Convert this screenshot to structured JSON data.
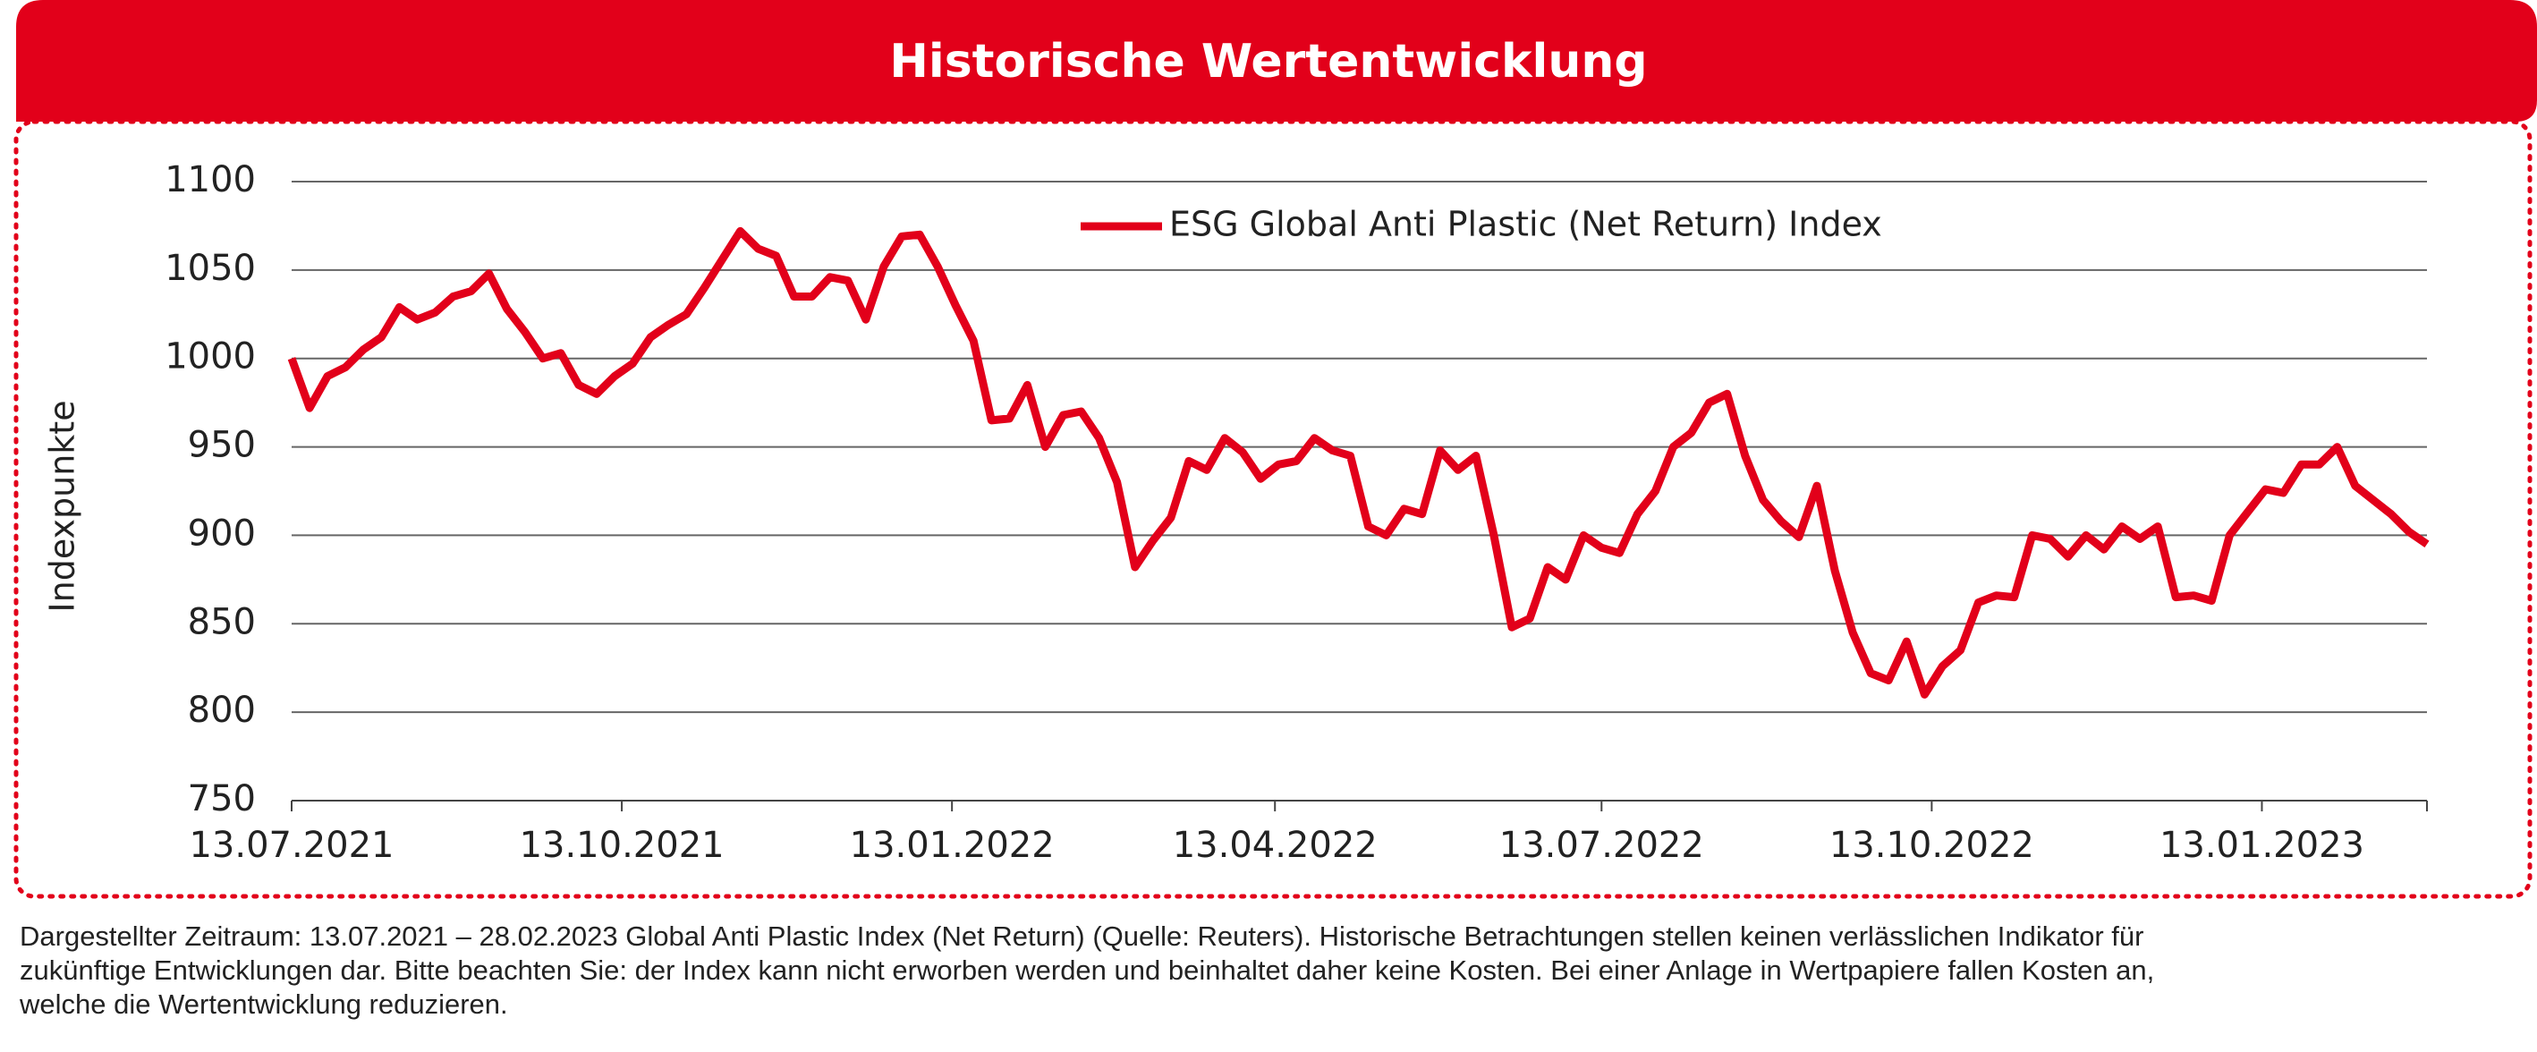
{
  "chart_data": {
    "type": "line",
    "title": "Historische Wertentwicklung",
    "ylabel": "Indexpunkte",
    "x": [
      "13.07.2021",
      "18.07.2021",
      "23.07.2021",
      "28.07.2021",
      "02.08.2021",
      "07.08.2021",
      "12.08.2021",
      "17.08.2021",
      "22.08.2021",
      "27.08.2021",
      "01.09.2021",
      "06.09.2021",
      "11.09.2021",
      "16.09.2021",
      "21.09.2021",
      "26.09.2021",
      "01.10.2021",
      "06.10.2021",
      "11.10.2021",
      "16.10.2021",
      "21.10.2021",
      "26.10.2021",
      "31.10.2021",
      "05.11.2021",
      "10.11.2021",
      "15.11.2021",
      "20.11.2021",
      "25.11.2021",
      "30.11.2021",
      "05.12.2021",
      "10.12.2021",
      "15.12.2021",
      "20.12.2021",
      "25.12.2021",
      "30.12.2021",
      "04.01.2022",
      "09.01.2022",
      "14.01.2022",
      "19.01.2022",
      "24.01.2022",
      "29.01.2022",
      "03.02.2022",
      "08.02.2022",
      "13.02.2022",
      "18.02.2022",
      "23.02.2022",
      "28.02.2022",
      "05.03.2022",
      "10.03.2022",
      "15.03.2022",
      "20.03.2022",
      "25.03.2022",
      "30.03.2022",
      "04.04.2022",
      "09.04.2022",
      "14.04.2022",
      "19.04.2022",
      "24.04.2022",
      "29.04.2022",
      "04.05.2022",
      "09.05.2022",
      "14.05.2022",
      "19.05.2022",
      "24.05.2022",
      "29.05.2022",
      "03.06.2022",
      "08.06.2022",
      "13.06.2022",
      "18.06.2022",
      "23.06.2022",
      "28.06.2022",
      "03.07.2022",
      "08.07.2022",
      "13.07.2022",
      "18.07.2022",
      "23.07.2022",
      "28.07.2022",
      "02.08.2022",
      "07.08.2022",
      "12.08.2022",
      "17.08.2022",
      "22.08.2022",
      "27.08.2022",
      "01.09.2022",
      "06.09.2022",
      "11.09.2022",
      "16.09.2022",
      "21.09.2022",
      "26.09.2022",
      "01.10.2022",
      "06.10.2022",
      "11.10.2022",
      "16.10.2022",
      "21.10.2022",
      "26.10.2022",
      "31.10.2022",
      "05.11.2022",
      "10.11.2022",
      "15.11.2022",
      "20.11.2022",
      "25.11.2022",
      "30.11.2022",
      "05.12.2022",
      "10.12.2022",
      "15.12.2022",
      "20.12.2022",
      "25.12.2022",
      "30.12.2022",
      "04.01.2023",
      "09.01.2023",
      "14.01.2023",
      "19.01.2023",
      "24.01.2023",
      "29.01.2023",
      "03.02.2023",
      "08.02.2023",
      "13.02.2023",
      "18.02.2023",
      "23.02.2023",
      "28.02.2023"
    ],
    "series": [
      {
        "name": "ESG Global Anti Plastic (Net Return) Index",
        "color": "#e2001a",
        "values": [
          1000,
          972,
          990,
          995,
          1005,
          1012,
          1029,
          1022,
          1026,
          1035,
          1038,
          1048,
          1028,
          1015,
          1000,
          1003,
          985,
          980,
          990,
          997,
          1012,
          1019,
          1025,
          1040,
          1056,
          1072,
          1062,
          1058,
          1035,
          1035,
          1046,
          1044,
          1022,
          1052,
          1069,
          1070,
          1052,
          1030,
          1010,
          965,
          966,
          985,
          950,
          968,
          970,
          955,
          930,
          882,
          897,
          910,
          942,
          937,
          955,
          947,
          932,
          940,
          942,
          955,
          948,
          945,
          905,
          900,
          915,
          912,
          948,
          937,
          945,
          900,
          848,
          853,
          882,
          875,
          900,
          893,
          890,
          912,
          925,
          950,
          958,
          975,
          980,
          945,
          920,
          908,
          899,
          928,
          880,
          845,
          822,
          818,
          840,
          810,
          826,
          835,
          862,
          866,
          865,
          900,
          898,
          888,
          900,
          892,
          905,
          898,
          905,
          865,
          866,
          863,
          900,
          913,
          926,
          924,
          940,
          940,
          950,
          928,
          920,
          912,
          902,
          895
        ]
      }
    ],
    "xlim": [
      "13.07.2021",
      "28.02.2023"
    ],
    "xticks": [
      "13.07.2021",
      "13.10.2021",
      "13.01.2022",
      "13.04.2022",
      "13.07.2022",
      "13.10.2022",
      "13.01.2023"
    ],
    "ylim": [
      750,
      1100
    ],
    "yticks": [
      750,
      800,
      850,
      900,
      950,
      1000,
      1050,
      1100
    ],
    "grid": true,
    "legend": "top"
  },
  "footnote": [
    "Dargestellter Zeitraum: 13.07.2021 – 28.02.2023 Global Anti Plastic Index (Net Return) (Quelle: Reuters). Historische Betrachtungen stellen keinen verlässlichen Indikator für",
    "zukünftige Entwicklungen dar. Bitte beachten Sie: der Index kann nicht erworben werden und beinhaltet daher keine Kosten. Bei einer Anlage in Wertpapiere fallen Kosten an,",
    "welche die Wertentwicklung reduzieren."
  ]
}
